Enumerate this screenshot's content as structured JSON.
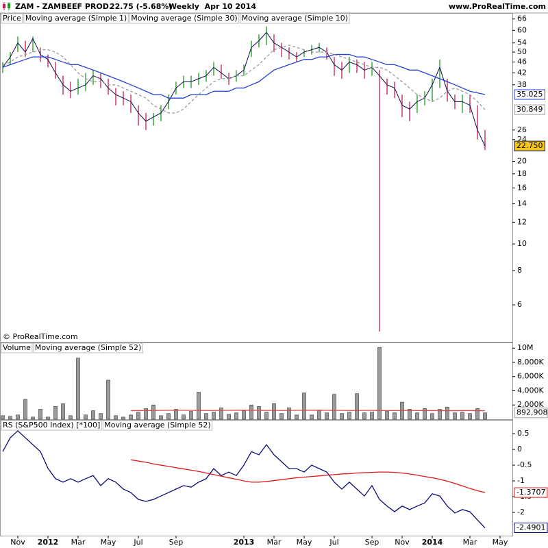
{
  "header": {
    "symbol": "ZAM - ZAMBEEF PROD.",
    "quote": "22.75 (-5.68%)",
    "period": "Weekly  Apr 10 2014",
    "site": "www.ProRealTime.com",
    "copyright": "© ProRealTime.com"
  },
  "chart_data": [
    {
      "type": "ohlc",
      "log_scale": true,
      "ylim": [
        4.4,
        69
      ],
      "yticks": [
        6,
        8,
        10,
        12,
        14,
        16,
        18,
        20,
        24,
        26,
        38,
        42,
        46,
        50,
        54,
        60,
        66
      ],
      "series": [
        {
          "name": "Price",
          "type": "ohlc",
          "color": "#000000",
          "up_color": "#1a9a1a",
          "down_color": "#c8194f",
          "high": [
            46,
            50,
            57,
            55,
            57,
            52,
            49,
            46,
            41,
            39,
            40,
            42,
            43,
            42,
            40,
            37,
            36,
            35,
            32,
            30,
            30,
            32,
            35,
            39,
            41,
            41,
            42,
            43,
            46,
            45,
            42,
            43,
            45,
            55,
            58,
            62,
            58,
            54,
            52,
            50,
            51,
            53,
            54,
            52,
            48,
            46,
            48,
            47,
            46,
            46,
            43,
            40,
            39,
            35,
            33,
            35,
            36,
            40,
            47,
            40,
            35,
            35,
            35,
            32,
            26,
            null,
            null
          ],
          "low": [
            42,
            45,
            50,
            48,
            50,
            46,
            44,
            40,
            35,
            34,
            35,
            36,
            38,
            37,
            35,
            32,
            32,
            30,
            27,
            26,
            27,
            28,
            31,
            35,
            37,
            37,
            38,
            39,
            41,
            40,
            38,
            39,
            41,
            48,
            52,
            53,
            50,
            48,
            47,
            46,
            48,
            49,
            50,
            47,
            41,
            40,
            42,
            42,
            40,
            41,
            4.8,
            35,
            34,
            29,
            28,
            30,
            32,
            33,
            37,
            33,
            31,
            30,
            30,
            24,
            22,
            null,
            null
          ]
        },
        {
          "name": "Moving average (Simple 1)",
          "type": "line",
          "color": "#0a0a50",
          "last_value_box": true,
          "box_fill": "#f5c518",
          "values": [
            44,
            48,
            54,
            50,
            56,
            49,
            47,
            42,
            38,
            36,
            37,
            38,
            41,
            40,
            37,
            35,
            34,
            33,
            30,
            28,
            29,
            30,
            33,
            37,
            39,
            39,
            40,
            41,
            44,
            42,
            40,
            41,
            43,
            52,
            55,
            59,
            54,
            52,
            50,
            48,
            50,
            51,
            52,
            50,
            45,
            43,
            46,
            45,
            43,
            44,
            41,
            38,
            37,
            32,
            31,
            33,
            34,
            38,
            44,
            36,
            33,
            33,
            32,
            26,
            22.75,
            null,
            null
          ],
          "value_labels": [
            null,
            null,
            null,
            null,
            null,
            null,
            null,
            null,
            null,
            null,
            null,
            null,
            null,
            null,
            null,
            null,
            null,
            null,
            null,
            null,
            null,
            null,
            null,
            null,
            null,
            null,
            null,
            null,
            null,
            null,
            null,
            null,
            null,
            null,
            null,
            null,
            null,
            null,
            null,
            null,
            null,
            null,
            null,
            null,
            null,
            null,
            null,
            null,
            null,
            null,
            null,
            null,
            null,
            null,
            null,
            null,
            null,
            null,
            null,
            null,
            null,
            null,
            null,
            null,
            "22.750",
            null,
            null
          ]
        },
        {
          "name": "Moving average (Simple 30)",
          "type": "line",
          "color": "#1f3fd6",
          "last_value_box": true,
          "values": [
            44,
            45,
            46,
            47,
            48,
            48,
            48,
            47,
            46,
            45,
            45,
            44,
            43,
            42,
            41,
            40,
            39,
            38,
            37,
            36,
            35,
            35,
            34,
            34,
            34,
            35,
            35,
            35,
            36,
            36,
            36,
            37,
            37,
            38,
            39,
            41,
            43,
            44,
            45,
            46,
            47,
            47,
            48,
            48,
            49,
            49,
            49,
            48,
            48,
            47,
            46,
            45,
            45,
            44,
            43,
            43,
            42,
            41,
            40,
            39,
            38,
            37,
            36,
            35.5,
            35.025,
            null,
            null
          ]
        },
        {
          "name": "Moving average (Simple 10)",
          "type": "line",
          "color": "#9a9a9a",
          "dashed": true,
          "last_value_box": true,
          "values": [
            45,
            46,
            48,
            49,
            50,
            51,
            51,
            50,
            48,
            45,
            42,
            40,
            39,
            39,
            38,
            38,
            37,
            36,
            35,
            34,
            32,
            31,
            30,
            30,
            31,
            33,
            35,
            37,
            39,
            40,
            40,
            41,
            41,
            43,
            45,
            48,
            51,
            52,
            53,
            52,
            51,
            50,
            50,
            50,
            49,
            48,
            47,
            46,
            45,
            44,
            44,
            43,
            41,
            39,
            37,
            35,
            34,
            33,
            34,
            36,
            37,
            36,
            35,
            33,
            30.849,
            null,
            null
          ]
        }
      ]
    },
    {
      "type": "bar",
      "ylim": [
        0,
        10600000
      ],
      "yticks": [
        {
          "value": 2000000,
          "label": "2,000K"
        },
        {
          "value": 4000000,
          "label": "4,000K"
        },
        {
          "value": 6000000,
          "label": "6,000K"
        },
        {
          "value": 8000000,
          "label": "8,000K"
        },
        {
          "value": 10000000,
          "label": "10M"
        }
      ],
      "series": [
        {
          "name": "Volume",
          "type": "bar",
          "color": "#9a9a9a",
          "last_value_box": true,
          "values": [
            500000,
            400000,
            600000,
            2800000,
            300000,
            1400000,
            300000,
            1800000,
            2200000,
            500000,
            8600000,
            600000,
            1200000,
            800000,
            5500000,
            500000,
            300000,
            600000,
            1000000,
            1500000,
            2000000,
            500000,
            800000,
            1400000,
            600000,
            1100000,
            3800000,
            800000,
            1000000,
            1600000,
            700000,
            900000,
            1200000,
            2000000,
            1800000,
            1000000,
            2200000,
            800000,
            1600000,
            600000,
            3700000,
            600000,
            1300000,
            900000,
            3500000,
            800000,
            1000000,
            3600000,
            900000,
            1000000,
            10100000,
            1100000,
            900000,
            2400000,
            1400000,
            900000,
            1500000,
            800000,
            1400000,
            1700000,
            900000,
            1000000,
            800000,
            1500000,
            892908,
            null,
            null
          ],
          "value_labels": [
            null,
            null,
            null,
            null,
            null,
            null,
            null,
            null,
            null,
            null,
            null,
            null,
            null,
            null,
            null,
            null,
            null,
            null,
            null,
            null,
            null,
            null,
            null,
            null,
            null,
            null,
            null,
            null,
            null,
            null,
            null,
            null,
            null,
            null,
            null,
            null,
            null,
            null,
            null,
            null,
            null,
            null,
            null,
            null,
            null,
            null,
            null,
            null,
            null,
            null,
            null,
            null,
            null,
            null,
            null,
            null,
            null,
            null,
            null,
            null,
            null,
            null,
            null,
            null,
            "892,908",
            null,
            null
          ]
        },
        {
          "name": "Moving average (Simple 52)",
          "type": "line",
          "color": "#e04848",
          "values": [
            null,
            null,
            null,
            null,
            null,
            null,
            null,
            null,
            null,
            null,
            null,
            null,
            null,
            null,
            null,
            null,
            null,
            1200000,
            1210000,
            1220000,
            1230000,
            1240000,
            1250000,
            1250000,
            1250000,
            1240000,
            1240000,
            1230000,
            1230000,
            1240000,
            1250000,
            1260000,
            1260000,
            1250000,
            1250000,
            1240000,
            1240000,
            1230000,
            1240000,
            1250000,
            1250000,
            1260000,
            1260000,
            1250000,
            1240000,
            1240000,
            1230000,
            1230000,
            1240000,
            1240000,
            1230000,
            1220000,
            1220000,
            1230000,
            1230000,
            1220000,
            1210000,
            1210000,
            1200000,
            1200000,
            1200000,
            1210000,
            1210000,
            1200000,
            1200000,
            null,
            null
          ]
        }
      ]
    },
    {
      "type": "line",
      "ylim": [
        -2.74,
        0.85
      ],
      "yticks": [
        0.5,
        0,
        -0.5,
        -1,
        -1.5,
        -2
      ],
      "categories": [
        null,
        null,
        "Nov",
        null,
        null,
        null,
        "2012",
        null,
        null,
        null,
        "Mar",
        null,
        null,
        null,
        "May",
        null,
        null,
        null,
        "Jul",
        null,
        null,
        null,
        null,
        "Sep",
        null,
        null,
        null,
        null,
        null,
        null,
        null,
        null,
        "2013",
        null,
        null,
        null,
        "Mar",
        null,
        null,
        null,
        "May",
        null,
        null,
        null,
        "Jul",
        null,
        null,
        null,
        null,
        "Sep",
        null,
        null,
        null,
        "Nov",
        null,
        null,
        null,
        "2014",
        null,
        null,
        null,
        null,
        "Mar",
        null,
        null,
        null,
        "May"
      ],
      "series": [
        {
          "name": "RS (S&P500 Index) [*100]",
          "type": "line",
          "color": "#0a0a78",
          "last_value_box": true,
          "values": [
            -0.07,
            0.37,
            0.59,
            0.37,
            0.15,
            -0.07,
            -0.6,
            -0.93,
            -1.04,
            -0.93,
            -1.04,
            -0.93,
            -0.83,
            -1.15,
            -0.93,
            -1.04,
            -1.26,
            -1.37,
            -1.59,
            -1.65,
            -1.59,
            -1.48,
            -1.37,
            -1.26,
            -1.15,
            -1.2,
            -1.04,
            -0.93,
            -0.61,
            -0.83,
            -0.72,
            -0.83,
            -0.5,
            -0.07,
            -0.17,
            0.15,
            -0.17,
            -0.39,
            -0.61,
            -0.61,
            -0.72,
            -0.5,
            -0.61,
            -0.72,
            -1.04,
            -1.26,
            -1.04,
            -1.26,
            -1.48,
            -1.15,
            -1.59,
            -1.8,
            -1.98,
            -1.8,
            -1.91,
            -1.8,
            -1.7,
            -1.41,
            -1.48,
            -1.8,
            -2.02,
            -1.91,
            -1.98,
            -2.24,
            -2.4901,
            null,
            null
          ]
        },
        {
          "name": "Moving average (Simple 52)",
          "type": "line",
          "color": "#e01818",
          "last_value_box": true,
          "values": [
            null,
            null,
            null,
            null,
            null,
            null,
            null,
            null,
            null,
            null,
            null,
            null,
            null,
            null,
            null,
            null,
            null,
            -0.33,
            -0.37,
            -0.41,
            -0.46,
            -0.5,
            -0.54,
            -0.58,
            -0.62,
            -0.66,
            -0.7,
            -0.75,
            -0.8,
            -0.85,
            -0.9,
            -0.95,
            -1.0,
            -1.04,
            -1.04,
            -1.02,
            -0.99,
            -0.96,
            -0.93,
            -0.9,
            -0.88,
            -0.86,
            -0.84,
            -0.82,
            -0.8,
            -0.78,
            -0.77,
            -0.75,
            -0.74,
            -0.73,
            -0.72,
            -0.72,
            -0.73,
            -0.75,
            -0.78,
            -0.82,
            -0.86,
            -0.9,
            -0.95,
            -1.01,
            -1.08,
            -1.16,
            -1.24,
            -1.31,
            -1.3707,
            null,
            null
          ]
        }
      ]
    }
  ]
}
